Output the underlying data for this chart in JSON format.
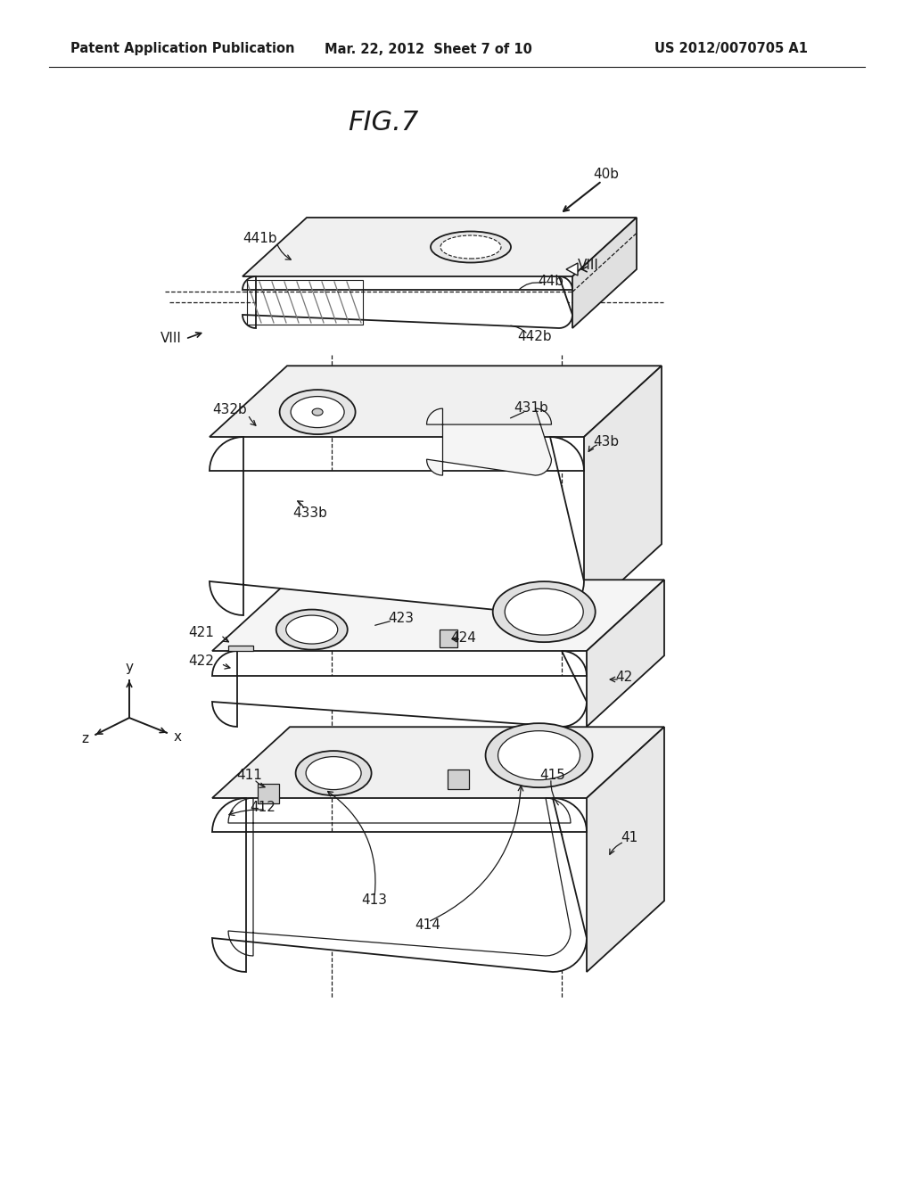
{
  "title": "FIG.7",
  "header_left": "Patent Application Publication",
  "header_center": "Mar. 22, 2012  Sheet 7 of 10",
  "header_right": "US 2012/0070705 A1",
  "bg_color": "#ffffff",
  "line_color": "#1a1a1a",
  "text_color": "#1a1a1a",
  "fig_label_fontsize": 22,
  "header_fontsize": 10.5,
  "label_fontsize": 11
}
